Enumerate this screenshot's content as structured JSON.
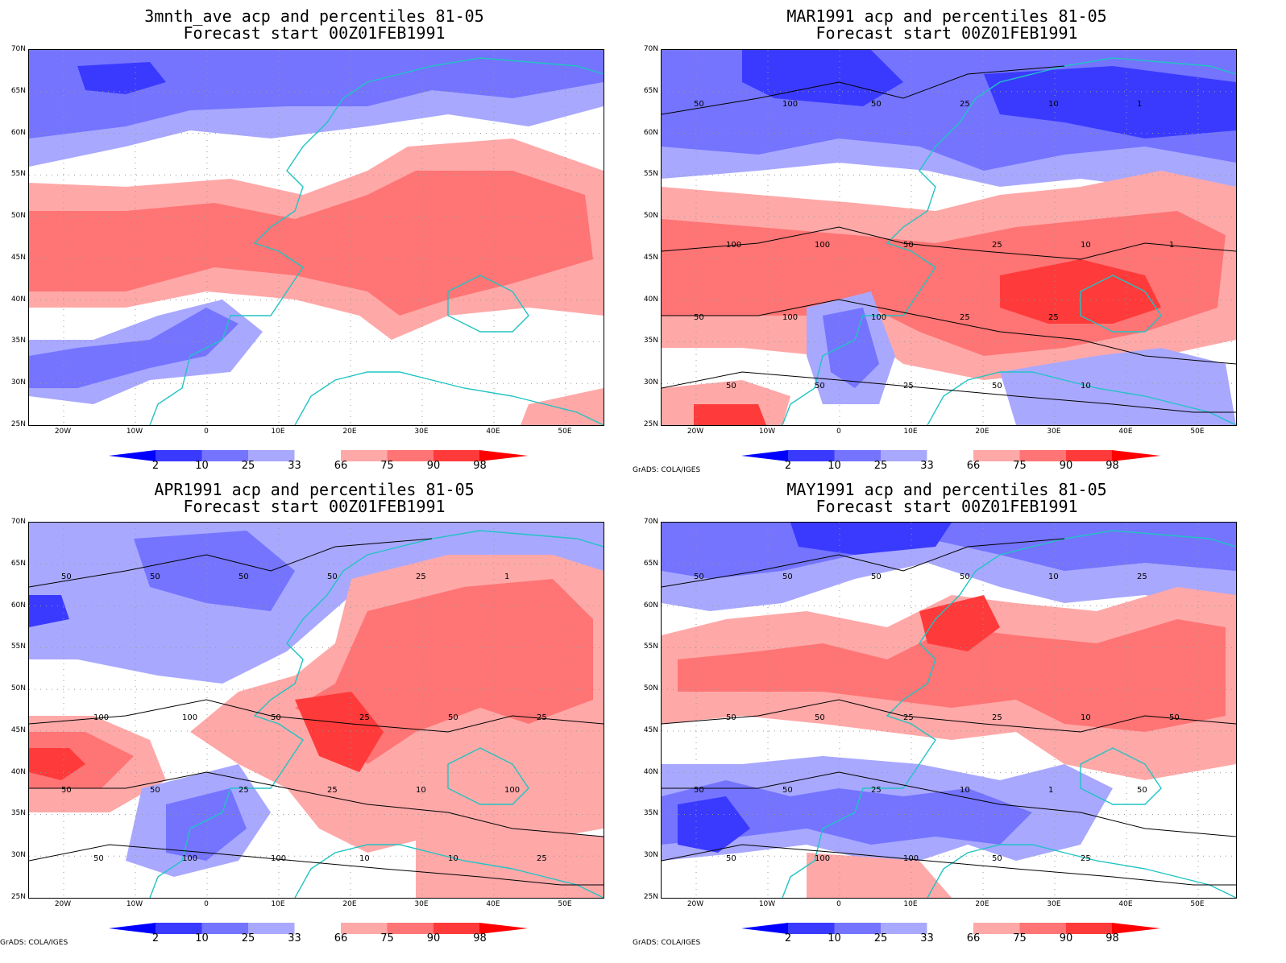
{
  "panels": [
    {
      "title1": "3mnth_ave acp and percentiles 81-05",
      "title2": "Forecast start 00Z01FEB1991",
      "credit": "",
      "contours": []
    },
    {
      "title1": "MAR1991 acp and percentiles 81-05",
      "title2": "Forecast start 00Z01FEB1991",
      "credit": "GrADS: COLA/IGES",
      "contours": [
        "50",
        "100",
        "50",
        "50",
        "100",
        "100",
        "100",
        "50",
        "50",
        "50",
        "100",
        "25",
        "25",
        "25",
        "25",
        "50",
        "10",
        "10",
        "25",
        "10",
        "1",
        "1"
      ]
    },
    {
      "title1": "APR1991 acp and percentiles 81-05",
      "title2": "Forecast start 00Z01FEB1991",
      "credit": "GrADS: COLA/IGES",
      "contours": [
        "50",
        "100",
        "50",
        "50",
        "50",
        "100",
        "50",
        "100",
        "50",
        "50",
        "25",
        "100",
        "50",
        "25",
        "25",
        "10",
        "25",
        "50",
        "10",
        "10",
        "1",
        "25",
        "100",
        "25"
      ]
    },
    {
      "title1": "MAY1991 acp and percentiles 81-05",
      "title2": "Forecast start 00Z01FEB1991",
      "credit": "GrADS: COLA/IGES",
      "contours": [
        "50",
        "50",
        "50",
        "50",
        "50",
        "50",
        "50",
        "100",
        "50",
        "25",
        "25",
        "100",
        "50",
        "25",
        "10",
        "50",
        "10",
        "10",
        "1",
        "25",
        "25",
        "50",
        "50"
      ]
    }
  ],
  "axes": {
    "lat_labels": [
      "70N",
      "65N",
      "60N",
      "55N",
      "50N",
      "45N",
      "40N",
      "35N",
      "30N",
      "25N"
    ],
    "lon_labels": [
      "20W",
      "10W",
      "0",
      "10E",
      "20E",
      "30E",
      "40E",
      "50E"
    ]
  },
  "colorbar": {
    "labels": [
      "2",
      "10",
      "25",
      "33",
      "66",
      "75",
      "90",
      "98"
    ],
    "colors": {
      "lt2": "#0000ff",
      "2_10": "#3a3aff",
      "10_25": "#7474ff",
      "25_33": "#a8a8ff",
      "33_66": "#ffffff",
      "66_75": "#ffa8a8",
      "75_90": "#ff7474",
      "90_98": "#ff3a3a",
      "gt98": "#ff0000"
    }
  },
  "map_colors": {
    "coast": "#22c3c3",
    "contour": "#000000"
  }
}
